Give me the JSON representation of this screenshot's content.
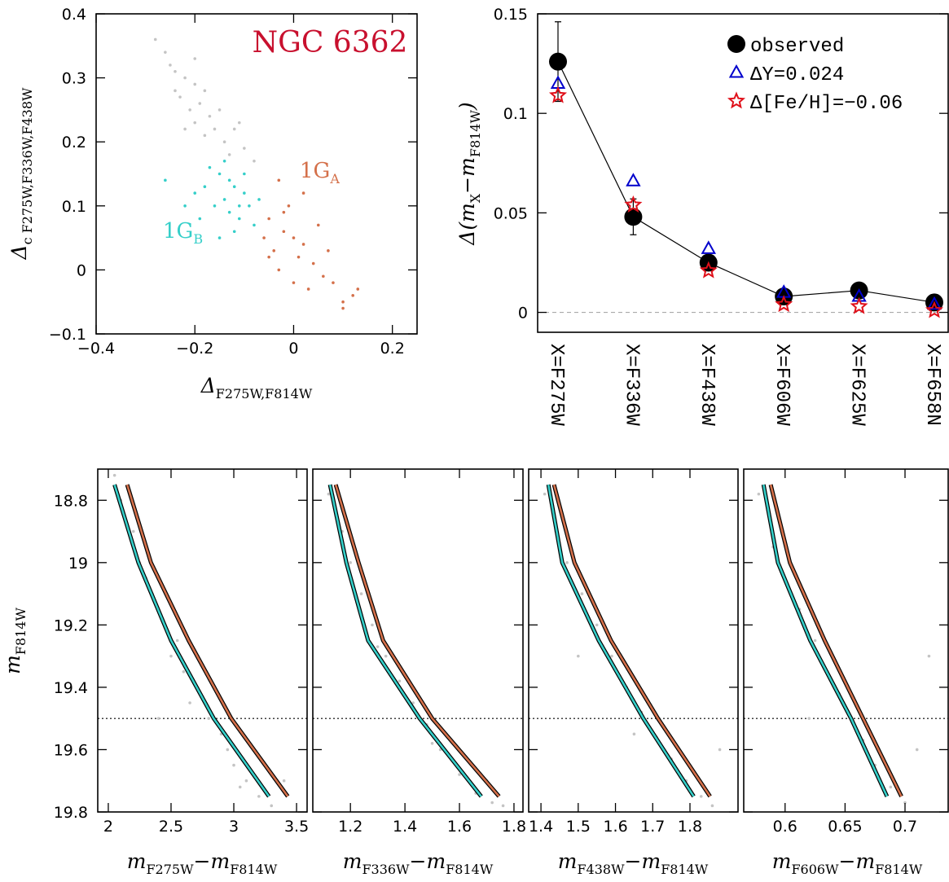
{
  "chart_data": [
    {
      "type": "scatter",
      "xlabel": [
        "Δ",
        "F275W,F814W"
      ],
      "ylabel": [
        "Δ",
        "c F275W,F336W,F438W"
      ],
      "xlim": [
        -0.4,
        0.25
      ],
      "ylim": [
        -0.1,
        0.4
      ],
      "xticks": [
        {
          "value": -0.4,
          "label": "−0.4"
        },
        {
          "value": -0.2,
          "label": "−0.2"
        },
        0,
        0.2
      ],
      "yticks": [
        {
          "value": -0.1,
          "label": "−0.1"
        },
        0,
        0.1,
        0.2,
        0.3,
        0.4
      ],
      "annotations": [
        {
          "parts": [
            "NGC 6362"
          ],
          "color": "#c8102e"
        },
        {
          "parts": [
            "1G",
            "A"
          ],
          "color": "#d4704a"
        },
        {
          "parts": [
            "1G",
            "B"
          ],
          "color": "#35cfc9"
        }
      ],
      "series": [
        {
          "color": "#c4c4c4",
          "mode": "points",
          "x": [
            -0.25,
            -0.22,
            -0.2,
            -0.23,
            -0.19,
            -0.21,
            -0.17,
            -0.2,
            -0.16,
            -0.18,
            -0.14,
            -0.24,
            -0.26,
            -0.15,
            -0.12,
            -0.22,
            -0.13,
            -0.1,
            -0.28,
            -0.18,
            -0.08,
            -0.11,
            -0.24,
            -0.2
          ],
          "values": [
            0.32,
            0.3,
            0.29,
            0.27,
            0.26,
            0.25,
            0.24,
            0.23,
            0.22,
            0.21,
            0.2,
            0.28,
            0.34,
            0.25,
            0.22,
            0.22,
            0.18,
            0.19,
            0.36,
            0.28,
            0.17,
            0.23,
            0.31,
            0.33
          ]
        },
        {
          "color": "#35cfc9",
          "mode": "points",
          "x": [
            -0.15,
            -0.12,
            -0.14,
            -0.1,
            -0.16,
            -0.13,
            -0.11,
            -0.09,
            -0.18,
            -0.2,
            -0.26,
            -0.17,
            -0.08,
            -0.12,
            -0.1,
            -0.14,
            -0.19,
            -0.07,
            -0.15,
            -0.22,
            -0.11,
            -0.13
          ],
          "values": [
            0.15,
            0.13,
            0.11,
            0.12,
            0.1,
            0.09,
            0.08,
            0.1,
            0.13,
            0.12,
            0.14,
            0.16,
            0.07,
            0.06,
            0.15,
            0.17,
            0.08,
            0.11,
            0.05,
            0.1,
            0.1,
            0.14
          ]
        },
        {
          "color": "#d4704a",
          "mode": "points",
          "x": [
            -0.05,
            -0.02,
            0,
            -0.04,
            0.02,
            -0.06,
            0.01,
            0.04,
            -0.03,
            0.06,
            0.03,
            0.08,
            0.1,
            -0.01,
            0.02,
            -0.03,
            0.05,
            0.12,
            0,
            -0.05,
            0.07,
            0.1,
            0.13,
            -0.02
          ],
          "values": [
            0.08,
            0.06,
            0.05,
            0.03,
            0.04,
            0.05,
            0.02,
            0.01,
            0,
            -0.01,
            -0.03,
            -0.02,
            -0.05,
            0.1,
            0.12,
            0.14,
            0.07,
            -0.04,
            -0.02,
            0.02,
            0.03,
            -0.06,
            -0.03,
            0.09
          ]
        }
      ]
    },
    {
      "type": "line",
      "ylabel": [
        "Δ(m",
        "X",
        "−m",
        "F814W",
        ")"
      ],
      "categories": [
        "X=F275W",
        "X=F336W",
        "X=F438W",
        "X=F606W",
        "X=F625W",
        "X=F658N"
      ],
      "ylim": [
        -0.01,
        0.15
      ],
      "yticks": [
        0,
        0.05,
        0.1,
        0.15
      ],
      "hline": 0,
      "legend": "upper right",
      "series": [
        {
          "name": "observed",
          "color": "#000000",
          "marker": "circle",
          "connect": true,
          "values": [
            0.126,
            0.048,
            0.025,
            0.008,
            0.011,
            0.005
          ],
          "errors": [
            0.02,
            0.009,
            0.003,
            0.002,
            0.002,
            0.002
          ]
        },
        {
          "name": "ΔY=0.024",
          "color": "#0000cc",
          "marker": "triangle",
          "values": [
            0.115,
            0.066,
            0.032,
            0.01,
            0.008,
            0.004
          ]
        },
        {
          "name": "Δ[Fe/H]=−0.06",
          "color": "#e0101a",
          "marker": "star",
          "values": [
            0.109,
            0.054,
            0.021,
            0.004,
            0.003,
            0.001
          ]
        }
      ]
    },
    {
      "type": "scatter",
      "xlabel": [
        "m",
        "F275W",
        "−m",
        "F814W"
      ],
      "ylabel": [
        "m",
        "F814W"
      ],
      "xlim": [
        1.916,
        3.584
      ],
      "ylim": [
        19.8,
        18.7
      ],
      "xticks": [
        2,
        2.5,
        3,
        3.5
      ],
      "yticks": [
        18.8,
        19,
        19.2,
        19.4,
        19.6,
        19.8
      ],
      "hline": 19.5,
      "series": [
        {
          "color": "#c4c4c4",
          "mode": "points",
          "x": [
            2.1,
            2.2,
            2.3,
            2.35,
            2.45,
            2.5,
            2.6,
            2.7,
            2.8,
            2.9,
            3.0,
            3.1,
            3.2,
            2.25,
            2.55,
            2.95,
            3.3,
            2.05,
            2.65,
            3.05,
            3.4,
            2.4
          ],
          "values": [
            18.8,
            18.9,
            19.05,
            19.1,
            19.2,
            19.3,
            19.35,
            19.4,
            19.5,
            19.55,
            19.65,
            19.7,
            19.75,
            19.0,
            19.25,
            19.6,
            19.78,
            18.72,
            19.45,
            19.72,
            19.7,
            19.5
          ]
        },
        {
          "color": "#35cfc9",
          "mode": "line",
          "x": [
            2.05,
            2.24,
            2.5,
            2.84,
            3.28
          ],
          "values": [
            18.75,
            19.0,
            19.25,
            19.5,
            19.75
          ]
        },
        {
          "color": "#d4704a",
          "mode": "line",
          "x": [
            2.15,
            2.34,
            2.64,
            2.98,
            3.43
          ],
          "values": [
            18.75,
            19.0,
            19.25,
            19.5,
            19.75
          ]
        }
      ]
    },
    {
      "type": "scatter",
      "xlabel": [
        "m",
        "F336W",
        "−m",
        "F814W"
      ],
      "xlim": [
        1.062,
        1.833
      ],
      "ylim": [
        19.8,
        18.7
      ],
      "xticks": [
        1.2,
        1.4,
        1.6,
        1.8
      ],
      "hline": 19.5,
      "series": [
        {
          "color": "#c4c4c4",
          "mode": "points",
          "x": [
            1.12,
            1.17,
            1.2,
            1.24,
            1.28,
            1.33,
            1.38,
            1.43,
            1.48,
            1.53,
            1.6,
            1.66,
            1.72,
            1.15,
            1.3,
            1.5,
            1.7,
            1.76
          ],
          "values": [
            18.78,
            18.9,
            19.0,
            19.1,
            19.2,
            19.3,
            19.38,
            19.45,
            19.52,
            19.6,
            19.68,
            19.74,
            19.77,
            18.85,
            19.27,
            19.58,
            19.7,
            19.78
          ]
        },
        {
          "color": "#35cfc9",
          "mode": "line",
          "x": [
            1.125,
            1.185,
            1.265,
            1.454,
            1.68
          ],
          "values": [
            18.75,
            19.0,
            19.25,
            19.5,
            19.75
          ]
        },
        {
          "color": "#d4704a",
          "mode": "line",
          "x": [
            1.146,
            1.23,
            1.32,
            1.5,
            1.745
          ],
          "values": [
            18.75,
            19.0,
            19.25,
            19.5,
            19.75
          ]
        }
      ]
    },
    {
      "type": "scatter",
      "xlabel": [
        "m",
        "F438W",
        "−m",
        "F814W"
      ],
      "xlim": [
        1.367,
        1.929
      ],
      "ylim": [
        19.8,
        18.7
      ],
      "xticks": [
        1.4,
        1.5,
        1.6,
        1.7,
        1.8
      ],
      "hline": 19.5,
      "series": [
        {
          "color": "#c4c4c4",
          "mode": "points",
          "x": [
            1.41,
            1.44,
            1.47,
            1.51,
            1.55,
            1.59,
            1.63,
            1.67,
            1.71,
            1.75,
            1.79,
            1.83,
            1.86,
            1.5,
            1.65,
            1.88
          ],
          "values": [
            18.78,
            18.9,
            19.0,
            19.1,
            19.2,
            19.3,
            19.4,
            19.48,
            19.56,
            19.63,
            19.7,
            19.75,
            19.78,
            19.3,
            19.55,
            19.6
          ]
        },
        {
          "color": "#35cfc9",
          "mode": "line",
          "x": [
            1.42,
            1.457,
            1.555,
            1.675,
            1.81
          ],
          "values": [
            18.75,
            19.0,
            19.25,
            19.5,
            19.75
          ]
        },
        {
          "color": "#d4704a",
          "mode": "line",
          "x": [
            1.435,
            1.49,
            1.588,
            1.714,
            1.854
          ],
          "values": [
            18.75,
            19.0,
            19.25,
            19.5,
            19.75
          ]
        }
      ]
    },
    {
      "type": "scatter",
      "xlabel": [
        "m",
        "F606W",
        "−m",
        "F814W"
      ],
      "xlim": [
        0.5655,
        0.736
      ],
      "ylim": [
        19.8,
        18.7
      ],
      "xticks": [
        0.6,
        0.65,
        0.7
      ],
      "hline": 19.5,
      "series": [
        {
          "color": "#c4c4c4",
          "mode": "points",
          "x": [
            0.578,
            0.59,
            0.6,
            0.612,
            0.625,
            0.635,
            0.645,
            0.655,
            0.665,
            0.675,
            0.688,
            0.7,
            0.71,
            0.62,
            0.72
          ],
          "values": [
            18.78,
            18.95,
            19.05,
            19.15,
            19.25,
            19.35,
            19.42,
            19.5,
            19.57,
            19.65,
            19.72,
            19.77,
            19.6,
            19.5,
            19.3
          ]
        },
        {
          "color": "#35cfc9",
          "mode": "line",
          "x": [
            0.582,
            0.594,
            0.621,
            0.655,
            0.685
          ],
          "values": [
            18.75,
            19.0,
            19.25,
            19.5,
            19.75
          ]
        },
        {
          "color": "#d4704a",
          "mode": "line",
          "x": [
            0.588,
            0.604,
            0.633,
            0.665,
            0.697
          ],
          "values": [
            18.75,
            19.0,
            19.25,
            19.5,
            19.75
          ]
        }
      ]
    }
  ]
}
